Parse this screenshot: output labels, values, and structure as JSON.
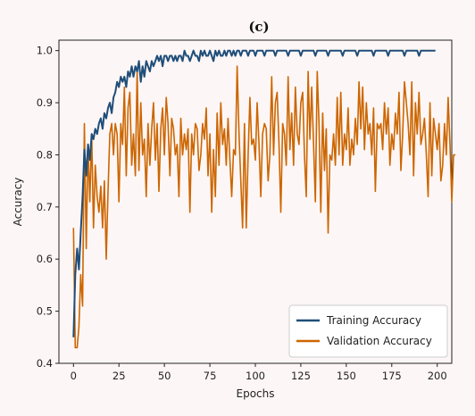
{
  "chart_data": {
    "type": "line",
    "title": "(c)",
    "xlabel": "Epochs",
    "ylabel": "Accuracy",
    "xlim": [
      -8,
      208
    ],
    "ylim": [
      0.4,
      1.02
    ],
    "xticks": [
      0,
      25,
      50,
      75,
      100,
      125,
      150,
      175,
      200
    ],
    "yticks": [
      0.4,
      0.5,
      0.6,
      0.7,
      0.8,
      0.9,
      1.0
    ],
    "grid": false,
    "legend_position": "lower-right",
    "series": [
      {
        "name": "Training Accuracy",
        "color": "#1f4e79",
        "values": [
          0.45,
          0.57,
          0.62,
          0.58,
          0.65,
          0.72,
          0.81,
          0.76,
          0.82,
          0.79,
          0.84,
          0.83,
          0.85,
          0.84,
          0.86,
          0.87,
          0.85,
          0.88,
          0.87,
          0.89,
          0.9,
          0.88,
          0.91,
          0.92,
          0.94,
          0.93,
          0.95,
          0.94,
          0.95,
          0.93,
          0.96,
          0.95,
          0.97,
          0.95,
          0.97,
          0.96,
          0.98,
          0.94,
          0.97,
          0.95,
          0.98,
          0.97,
          0.96,
          0.98,
          0.97,
          0.98,
          0.99,
          0.98,
          0.99,
          0.97,
          0.99,
          0.99,
          0.98,
          0.99,
          0.99,
          0.98,
          0.99,
          0.98,
          0.99,
          0.99,
          0.98,
          1.0,
          0.99,
          0.99,
          0.98,
          0.99,
          1.0,
          0.99,
          0.99,
          0.98,
          1.0,
          0.99,
          1.0,
          0.99,
          0.99,
          1.0,
          0.99,
          0.98,
          1.0,
          0.99,
          1.0,
          0.99,
          0.99,
          1.0,
          0.99,
          1.0,
          1.0,
          0.99,
          1.0,
          0.99,
          1.0,
          1.0,
          0.99,
          1.0,
          1.0,
          1.0,
          0.99,
          1.0,
          1.0,
          1.0,
          0.99,
          1.0,
          1.0,
          1.0,
          1.0,
          0.99,
          1.0,
          1.0,
          1.0,
          1.0,
          1.0,
          0.99,
          1.0,
          1.0,
          1.0,
          1.0,
          1.0,
          1.0,
          0.99,
          1.0,
          1.0,
          1.0,
          1.0,
          1.0,
          1.0,
          0.99,
          1.0,
          1.0,
          1.0,
          1.0,
          1.0,
          1.0,
          1.0,
          0.99,
          1.0,
          1.0,
          1.0,
          1.0,
          1.0,
          1.0,
          0.99,
          1.0,
          1.0,
          1.0,
          1.0,
          1.0,
          1.0,
          1.0,
          0.99,
          1.0,
          1.0,
          1.0,
          1.0,
          1.0,
          1.0,
          1.0,
          0.99,
          1.0,
          1.0,
          1.0,
          1.0,
          1.0,
          1.0,
          1.0,
          1.0,
          0.99,
          1.0,
          1.0,
          1.0,
          1.0,
          1.0,
          1.0,
          1.0,
          0.99,
          1.0,
          1.0,
          1.0,
          1.0,
          1.0,
          1.0,
          1.0,
          1.0,
          0.99,
          1.0,
          1.0,
          1.0,
          1.0,
          1.0,
          1.0,
          1.0,
          0.99,
          1.0,
          1.0,
          1.0,
          1.0,
          1.0,
          1.0,
          1.0,
          1.0,
          1.0
        ]
      },
      {
        "name": "Validation Accuracy",
        "color": "#cc6600",
        "values": [
          0.66,
          0.43,
          0.43,
          0.47,
          0.57,
          0.51,
          0.86,
          0.62,
          0.82,
          0.71,
          0.84,
          0.66,
          0.78,
          0.72,
          0.69,
          0.74,
          0.66,
          0.75,
          0.6,
          0.73,
          0.84,
          0.86,
          0.8,
          0.86,
          0.84,
          0.71,
          0.86,
          0.82,
          0.93,
          0.76,
          0.89,
          0.92,
          0.78,
          0.84,
          0.76,
          0.96,
          0.77,
          0.9,
          0.8,
          0.83,
          0.72,
          0.86,
          0.78,
          0.85,
          0.9,
          0.79,
          0.86,
          0.73,
          0.85,
          0.89,
          0.8,
          0.91,
          0.86,
          0.76,
          0.87,
          0.85,
          0.8,
          0.82,
          0.72,
          0.87,
          0.8,
          0.84,
          0.81,
          0.85,
          0.69,
          0.84,
          0.8,
          0.86,
          0.85,
          0.77,
          0.8,
          0.86,
          0.83,
          0.89,
          0.76,
          0.84,
          0.69,
          0.81,
          0.72,
          0.88,
          0.78,
          0.9,
          0.82,
          0.85,
          0.78,
          0.87,
          0.79,
          0.72,
          0.81,
          0.8,
          0.97,
          0.84,
          0.75,
          0.66,
          0.86,
          0.66,
          0.8,
          0.91,
          0.82,
          0.83,
          0.79,
          0.9,
          0.82,
          0.72,
          0.84,
          0.86,
          0.85,
          0.75,
          0.8,
          0.95,
          0.8,
          0.9,
          0.92,
          0.82,
          0.69,
          0.86,
          0.84,
          0.78,
          0.95,
          0.81,
          0.88,
          0.78,
          0.93,
          0.84,
          0.82,
          0.9,
          0.92,
          0.8,
          0.72,
          0.96,
          0.83,
          0.93,
          0.82,
          0.71,
          0.96,
          0.86,
          0.69,
          0.88,
          0.77,
          0.85,
          0.65,
          0.8,
          0.79,
          0.84,
          0.78,
          0.91,
          0.8,
          0.92,
          0.78,
          0.84,
          0.81,
          0.89,
          0.78,
          0.83,
          0.8,
          0.87,
          0.82,
          0.94,
          0.85,
          0.93,
          0.81,
          0.9,
          0.84,
          0.86,
          0.8,
          0.89,
          0.73,
          0.86,
          0.85,
          0.86,
          0.81,
          0.9,
          0.84,
          0.89,
          0.78,
          0.84,
          0.81,
          0.88,
          0.84,
          0.92,
          0.77,
          0.84,
          0.94,
          0.9,
          0.86,
          0.8,
          0.94,
          0.76,
          0.9,
          0.84,
          0.92,
          0.82,
          0.84,
          0.87,
          0.8,
          0.72,
          0.9,
          0.76,
          0.87,
          0.84,
          0.81,
          0.86,
          0.75,
          0.78,
          0.86,
          0.8,
          0.91,
          0.82,
          0.71,
          0.8,
          0.8
        ]
      }
    ]
  }
}
